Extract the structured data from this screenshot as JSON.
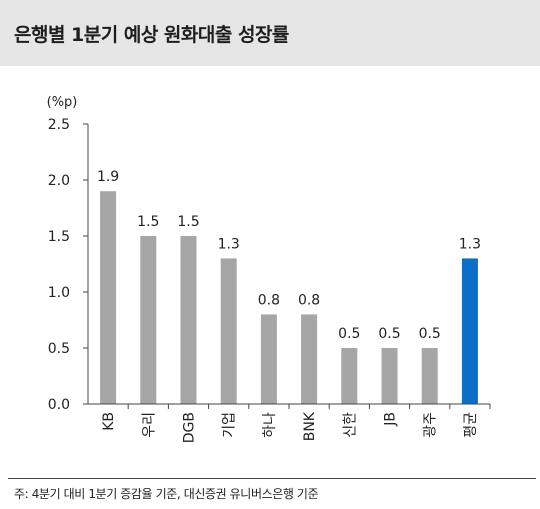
{
  "title": "은행별 1분기 예상 원화대출 성장률",
  "footnote": "주: 4분기 대비 1분기 증감율 기준, 대신증권 유니버스은행 기준",
  "colors": {
    "bar": "#a6a6a6",
    "highlight": "#0b6fc6",
    "axis": "#444444"
  },
  "chart_data": {
    "type": "bar",
    "unit_label": "(%p)",
    "categories": [
      "KB",
      "우리",
      "DGB",
      "기업",
      "하나",
      "BNK",
      "신한",
      "JB",
      "광주",
      "평균"
    ],
    "values": [
      1.9,
      1.5,
      1.5,
      1.3,
      0.8,
      0.8,
      0.5,
      0.5,
      0.5,
      1.3
    ],
    "value_labels": [
      "1.9",
      "1.5",
      "1.5",
      "1.3",
      "0.8",
      "0.8",
      "0.5",
      "0.5",
      "0.5",
      "1.3"
    ],
    "highlight_index": 9,
    "ylim": [
      0,
      2.5
    ],
    "yticks": [
      "0.0",
      "0.5",
      "1.0",
      "1.5",
      "2.0",
      "2.5"
    ],
    "grid": false,
    "legend": "none"
  }
}
